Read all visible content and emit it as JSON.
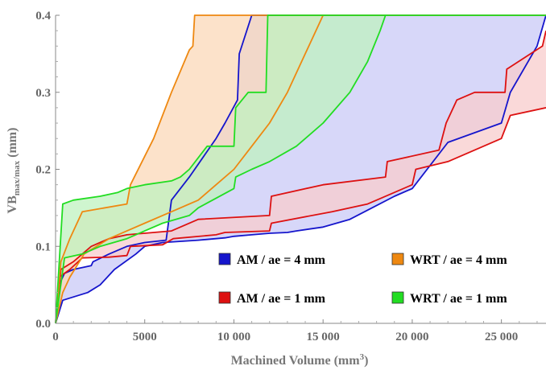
{
  "chart_data": {
    "type": "area",
    "xlabel_main": "Machined Volume (mm",
    "xlabel_sup": "3",
    "xlabel_end": ")",
    "ylabel_main": "VB",
    "ylabel_sub": "max/max",
    "ylabel_end": " (mm)",
    "xlim": [
      0,
      27500
    ],
    "ylim": [
      0,
      0.4
    ],
    "xticks": [
      0,
      5000,
      10000,
      15000,
      20000,
      25000
    ],
    "xtick_labels": [
      "0",
      "5000",
      "10 000",
      "15 000",
      "20 000",
      "25 000"
    ],
    "yticks": [
      0,
      0.1,
      0.2,
      0.3,
      0.4
    ],
    "ytick_labels": [
      "0.0",
      "0.1",
      "0.2",
      "0.3",
      "0.4"
    ],
    "grid": false,
    "legend_position": "bottom-right",
    "series": [
      {
        "name": "AM / ae = 4 mm",
        "color": "#1515cc",
        "fill": "#c9c9f7",
        "upper": [
          [
            0,
            0
          ],
          [
            200,
            0.05
          ],
          [
            500,
            0.065
          ],
          [
            1000,
            0.07
          ],
          [
            2000,
            0.075
          ],
          [
            2100,
            0.08
          ],
          [
            3000,
            0.09
          ],
          [
            4000,
            0.1
          ],
          [
            5000,
            0.105
          ],
          [
            6200,
            0.108
          ],
          [
            6500,
            0.16
          ],
          [
            7500,
            0.19
          ],
          [
            8400,
            0.22
          ],
          [
            9000,
            0.24
          ],
          [
            9500,
            0.26
          ],
          [
            10200,
            0.29
          ],
          [
            10300,
            0.35
          ],
          [
            11000,
            0.4
          ],
          [
            27500,
            0.4
          ]
        ],
        "lower": [
          [
            0,
            0
          ],
          [
            400,
            0.03
          ],
          [
            1800,
            0.04
          ],
          [
            2500,
            0.05
          ],
          [
            3300,
            0.07
          ],
          [
            4500,
            0.09
          ],
          [
            5000,
            0.1
          ],
          [
            6000,
            0.105
          ],
          [
            8000,
            0.108
          ],
          [
            9500,
            0.111
          ],
          [
            10000,
            0.113
          ],
          [
            11000,
            0.115
          ],
          [
            12000,
            0.117
          ],
          [
            13000,
            0.118
          ],
          [
            13500,
            0.12
          ],
          [
            15000,
            0.125
          ],
          [
            16500,
            0.135
          ],
          [
            19000,
            0.165
          ],
          [
            20000,
            0.175
          ],
          [
            22000,
            0.235
          ],
          [
            25000,
            0.26
          ],
          [
            25500,
            0.3
          ],
          [
            27000,
            0.36
          ],
          [
            27500,
            0.4
          ]
        ]
      },
      {
        "name": "AM / ae = 1 mm",
        "color": "#dd1111",
        "fill": "#f8cccc",
        "upper": [
          [
            0,
            0
          ],
          [
            300,
            0.07
          ],
          [
            1000,
            0.08
          ],
          [
            1500,
            0.09
          ],
          [
            2000,
            0.1
          ],
          [
            3000,
            0.11
          ],
          [
            4000,
            0.115
          ],
          [
            6500,
            0.12
          ],
          [
            8000,
            0.135
          ],
          [
            12000,
            0.14
          ],
          [
            12100,
            0.165
          ],
          [
            15000,
            0.18
          ],
          [
            18500,
            0.19
          ],
          [
            18600,
            0.21
          ],
          [
            21500,
            0.225
          ],
          [
            21900,
            0.26
          ],
          [
            22500,
            0.29
          ],
          [
            23500,
            0.3
          ],
          [
            25200,
            0.3
          ],
          [
            25300,
            0.33
          ],
          [
            27300,
            0.36
          ],
          [
            27500,
            0.38
          ]
        ],
        "lower": [
          [
            0,
            0
          ],
          [
            200,
            0.06
          ],
          [
            800,
            0.07
          ],
          [
            1500,
            0.085
          ],
          [
            3000,
            0.086
          ],
          [
            4000,
            0.088
          ],
          [
            4200,
            0.1
          ],
          [
            6000,
            0.102
          ],
          [
            6600,
            0.11
          ],
          [
            9000,
            0.115
          ],
          [
            9500,
            0.118
          ],
          [
            12000,
            0.12
          ],
          [
            12100,
            0.13
          ],
          [
            15500,
            0.145
          ],
          [
            17500,
            0.155
          ],
          [
            18000,
            0.16
          ],
          [
            20000,
            0.18
          ],
          [
            20200,
            0.2
          ],
          [
            22000,
            0.21
          ],
          [
            25000,
            0.24
          ],
          [
            25500,
            0.27
          ],
          [
            27500,
            0.28
          ]
        ]
      },
      {
        "name": "WRT / ae = 4 mm",
        "color": "#ee8811",
        "fill": "#fbd8b8",
        "upper": [
          [
            0,
            0
          ],
          [
            300,
            0.08
          ],
          [
            800,
            0.11
          ],
          [
            1500,
            0.145
          ],
          [
            4000,
            0.155
          ],
          [
            4200,
            0.18
          ],
          [
            5500,
            0.24
          ],
          [
            6500,
            0.3
          ],
          [
            7500,
            0.355
          ],
          [
            7700,
            0.36
          ],
          [
            7800,
            0.4
          ],
          [
            27500,
            0.4
          ]
        ],
        "lower": [
          [
            0,
            0
          ],
          [
            400,
            0.04
          ],
          [
            800,
            0.06
          ],
          [
            1600,
            0.09
          ],
          [
            3000,
            0.11
          ],
          [
            4000,
            0.12
          ],
          [
            5000,
            0.13
          ],
          [
            6000,
            0.14
          ],
          [
            7000,
            0.15
          ],
          [
            8000,
            0.16
          ],
          [
            9000,
            0.18
          ],
          [
            10000,
            0.2
          ],
          [
            11000,
            0.23
          ],
          [
            12000,
            0.26
          ],
          [
            13000,
            0.3
          ],
          [
            14000,
            0.35
          ],
          [
            15000,
            0.4
          ]
        ]
      },
      {
        "name": "WRT / ae = 1 mm",
        "color": "#22dd22",
        "fill": "#bff2bf",
        "upper": [
          [
            0,
            0
          ],
          [
            400,
            0.155
          ],
          [
            1000,
            0.16
          ],
          [
            2500,
            0.165
          ],
          [
            3500,
            0.17
          ],
          [
            4000,
            0.175
          ],
          [
            5000,
            0.18
          ],
          [
            6500,
            0.185
          ],
          [
            7000,
            0.19
          ],
          [
            7500,
            0.2
          ],
          [
            8500,
            0.23
          ],
          [
            10000,
            0.23
          ],
          [
            10100,
            0.28
          ],
          [
            10800,
            0.3
          ],
          [
            11800,
            0.3
          ],
          [
            11900,
            0.4
          ],
          [
            27500,
            0.4
          ]
        ],
        "lower": [
          [
            0,
            0
          ],
          [
            500,
            0.085
          ],
          [
            1500,
            0.09
          ],
          [
            2500,
            0.1
          ],
          [
            4000,
            0.11
          ],
          [
            5000,
            0.12
          ],
          [
            6000,
            0.13
          ],
          [
            7500,
            0.14
          ],
          [
            8000,
            0.15
          ],
          [
            8800,
            0.16
          ],
          [
            10000,
            0.175
          ],
          [
            10100,
            0.19
          ],
          [
            11000,
            0.2
          ],
          [
            12000,
            0.21
          ],
          [
            13500,
            0.23
          ],
          [
            15000,
            0.26
          ],
          [
            16500,
            0.3
          ],
          [
            17500,
            0.34
          ],
          [
            18200,
            0.38
          ],
          [
            18500,
            0.4
          ]
        ]
      }
    ]
  }
}
